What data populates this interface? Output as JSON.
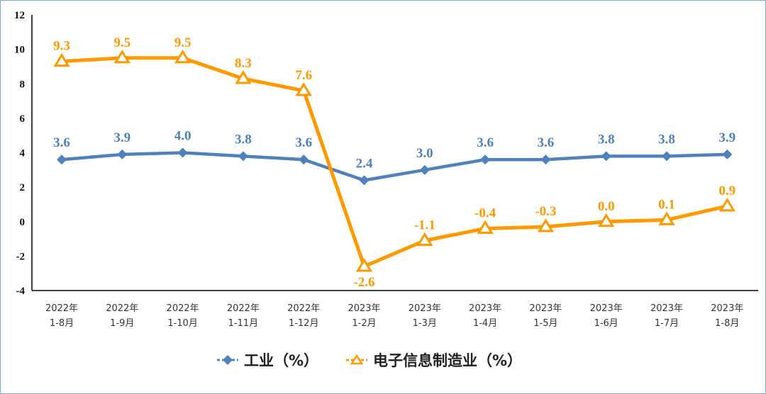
{
  "chart_data": {
    "type": "line",
    "categories": [
      [
        "2022年",
        "1-8月"
      ],
      [
        "2022年",
        "1-9月"
      ],
      [
        "2022年",
        "1-10月"
      ],
      [
        "2022年",
        "1-11月"
      ],
      [
        "2022年",
        "1-12月"
      ],
      [
        "2023年",
        "1-2月"
      ],
      [
        "2023年",
        "1-3月"
      ],
      [
        "2023年",
        "1-4月"
      ],
      [
        "2023年",
        "1-5月"
      ],
      [
        "2023年",
        "1-6月"
      ],
      [
        "2023年",
        "1-7月"
      ],
      [
        "2023年",
        "1-8月"
      ]
    ],
    "series": [
      {
        "name": "工业（%）",
        "color": "#4f81bd",
        "marker": "diamond",
        "values": [
          3.6,
          3.9,
          4.0,
          3.8,
          3.6,
          2.4,
          3.0,
          3.6,
          3.6,
          3.8,
          3.8,
          3.9
        ]
      },
      {
        "name": "电子信息制造业（%）",
        "color": "#ff9900",
        "marker": "triangle",
        "values": [
          9.3,
          9.5,
          9.5,
          8.3,
          7.6,
          -2.6,
          -1.1,
          -0.4,
          -0.3,
          0.0,
          0.1,
          0.9
        ]
      }
    ],
    "ylim": [
      -4,
      12
    ],
    "yticks": [
      -4,
      -2,
      0,
      2,
      4,
      6,
      8,
      10,
      12
    ],
    "grid": false,
    "legend": "bottom",
    "title": "",
    "xlabel": "",
    "ylabel": ""
  }
}
